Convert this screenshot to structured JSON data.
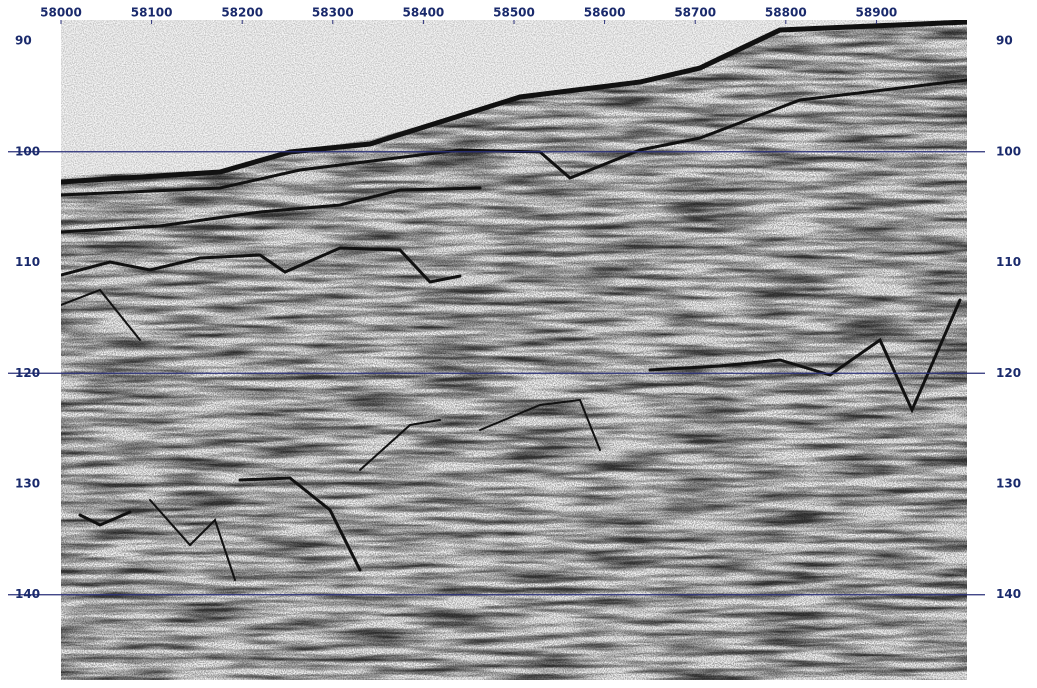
{
  "chart_data": {
    "type": "seismic",
    "xlim": [
      58000,
      59000
    ],
    "xticks": [
      58000,
      58100,
      58200,
      58300,
      58400,
      58500,
      58600,
      58700,
      58800,
      58900
    ],
    "ylim": [
      88.1,
      147.7
    ],
    "yticks": [
      90,
      100,
      110,
      120,
      130,
      140
    ],
    "hlines": [
      100,
      120,
      140
    ],
    "line_color": "#2a2f78"
  }
}
